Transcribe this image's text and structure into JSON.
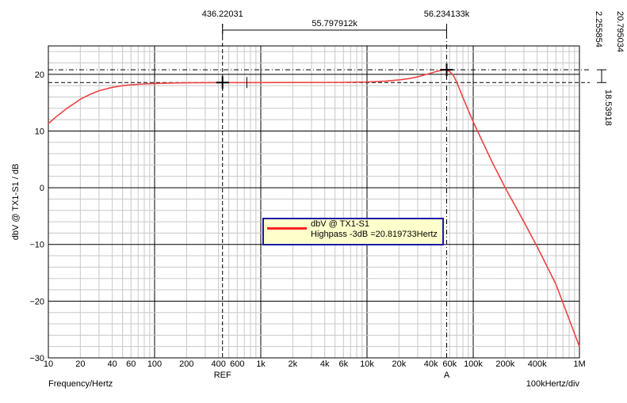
{
  "chart_data": {
    "type": "line",
    "title": "",
    "ylabel": "dbV @ TX1-S1 / dB",
    "xlabel": "Frequency/Hertz",
    "x_div_label": "100kHertz/div",
    "xscale": "log",
    "xlim": [
      10,
      1000000
    ],
    "ylim": [
      -30,
      25
    ],
    "grid": true,
    "x_ticks": [
      {
        "value": 10,
        "label": "10"
      },
      {
        "value": 20,
        "label": "20"
      },
      {
        "value": 40,
        "label": "40"
      },
      {
        "value": 60,
        "label": "60"
      },
      {
        "value": 100,
        "label": "100"
      },
      {
        "value": 200,
        "label": "200"
      },
      {
        "value": 400,
        "label": "400"
      },
      {
        "value": 600,
        "label": "600"
      },
      {
        "value": 1000,
        "label": "1k"
      },
      {
        "value": 2000,
        "label": "2k"
      },
      {
        "value": 4000,
        "label": "4k"
      },
      {
        "value": 6000,
        "label": "6k"
      },
      {
        "value": 10000,
        "label": "10k"
      },
      {
        "value": 20000,
        "label": "20k"
      },
      {
        "value": 40000,
        "label": "40k"
      },
      {
        "value": 60000,
        "label": "60k"
      },
      {
        "value": 100000,
        "label": "100k"
      },
      {
        "value": 200000,
        "label": "200k"
      },
      {
        "value": 400000,
        "label": "400k"
      },
      {
        "value": 1000000,
        "label": "1M"
      }
    ],
    "y_ticks": [
      {
        "value": 20,
        "label": "20"
      },
      {
        "value": 10,
        "label": "10"
      },
      {
        "value": 0,
        "label": "0"
      },
      {
        "value": -10,
        "label": "−10"
      },
      {
        "value": -20,
        "label": "−20"
      },
      {
        "value": -30,
        "label": "−30"
      }
    ],
    "series": [
      {
        "name": "dbV @ TX1-S1",
        "color": "#ee4444",
        "x": [
          10,
          12,
          15,
          20,
          25,
          30,
          40,
          50,
          60,
          80,
          100,
          150,
          200,
          300,
          400,
          600,
          1000,
          2000,
          4000,
          6000,
          10000,
          15000,
          20000,
          25000,
          30000,
          35000,
          40000,
          45000,
          50000,
          55000,
          56234,
          60000,
          65000,
          70000,
          80000,
          100000,
          150000,
          200000,
          300000,
          400000,
          600000,
          1000000
        ],
        "y": [
          11.3,
          12.6,
          14.0,
          15.6,
          16.5,
          17.1,
          17.7,
          18.0,
          18.15,
          18.3,
          18.38,
          18.46,
          18.5,
          18.52,
          18.54,
          18.54,
          18.54,
          18.55,
          18.56,
          18.58,
          18.65,
          18.8,
          19.0,
          19.25,
          19.55,
          19.9,
          20.2,
          20.5,
          20.7,
          20.79,
          20.79,
          20.5,
          19.8,
          18.6,
          15.9,
          11.6,
          4.6,
          0.0,
          -6.0,
          -10.4,
          -17.0,
          -28.0
        ]
      }
    ],
    "cursors": {
      "ref_label": "REF",
      "a_label": "A",
      "ref_x": 436.22031,
      "ref_x_label": "436.22031",
      "a_x": 56234.133,
      "a_x_label": "56.234133k",
      "delta_x_label": "55.797912k",
      "ref_y": 18.53918,
      "ref_y_label": "18.53918",
      "a_y": 20.795034,
      "a_y_label": "20.795034",
      "delta_y_label": "2.255854"
    },
    "legend": {
      "position": "center",
      "entries": [
        {
          "name": "dbV @ TX1-S1",
          "note": "Highpass -3dB =20.819733Hertz",
          "color": "#ff2020"
        }
      ]
    }
  }
}
